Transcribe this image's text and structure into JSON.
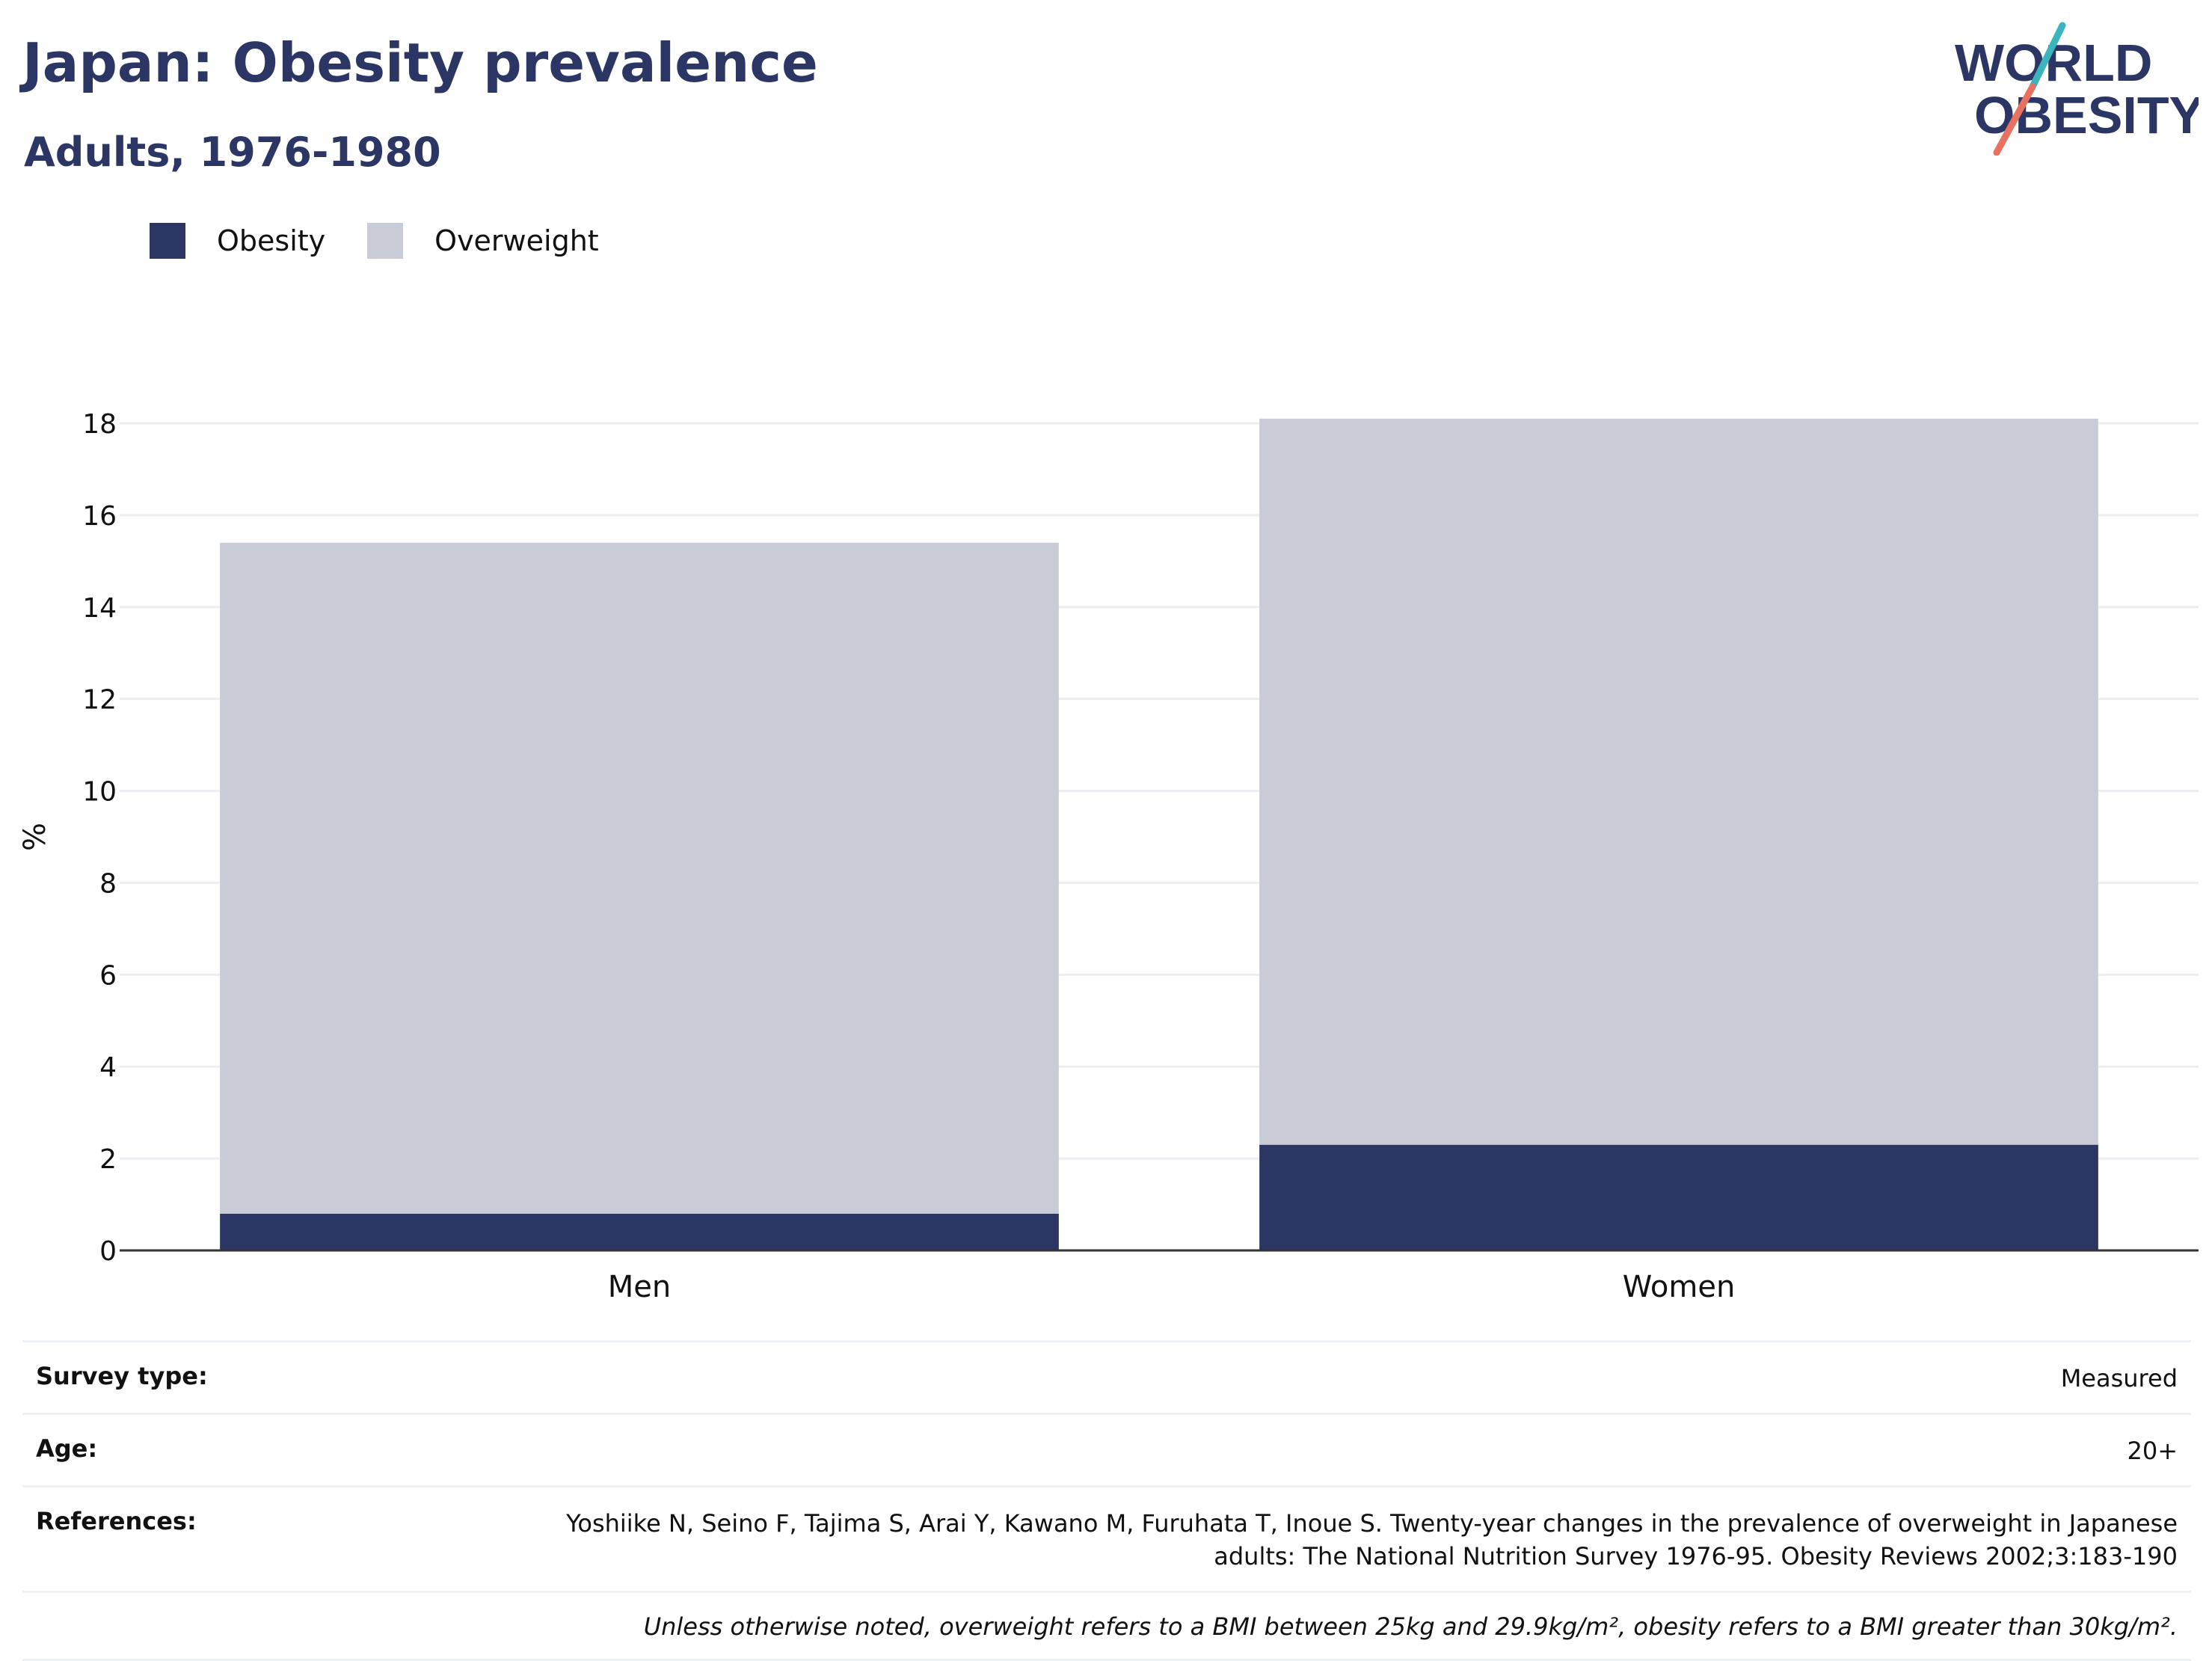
{
  "header": {
    "title": "Japan: Obesity prevalence",
    "subtitle": "Adults, 1976-1980"
  },
  "logo": {
    "line1": "WORLD",
    "line2": "OBESITY",
    "text_color": "#2b3665",
    "slash_top_color": "#3ab4bd",
    "slash_bottom_color": "#e8725f"
  },
  "legend": {
    "items": [
      {
        "label": "Obesity",
        "color": "#2b3665"
      },
      {
        "label": "Overweight",
        "color": "#c9ccd7"
      }
    ]
  },
  "chart_data": {
    "type": "bar",
    "stacked": true,
    "categories": [
      "Men",
      "Women"
    ],
    "series": [
      {
        "name": "Obesity",
        "color": "#2b3665",
        "values": [
          0.8,
          2.3
        ]
      },
      {
        "name": "Overweight",
        "color": "#c9ccd7",
        "values": [
          14.6,
          15.8
        ]
      }
    ],
    "ylabel": "%",
    "ylim": [
      0,
      18
    ],
    "yticks": [
      0,
      2,
      4,
      6,
      8,
      10,
      12,
      14,
      16,
      18
    ],
    "grid": true,
    "legend_position": "top-left"
  },
  "details": {
    "survey_type_label": "Survey type:",
    "survey_type_value": "Measured",
    "age_label": "Age:",
    "age_value": "20+",
    "references_label": "References:",
    "references_line1": "Yoshiike N, Seino F, Tajima S, Arai Y, Kawano M, Furuhata T, Inoue S. Twenty-year changes in the prevalence of overweight in Japanese",
    "references_line2": "adults: The National Nutrition Survey 1976-95. Obesity Reviews 2002;3:183-190",
    "note": "Unless otherwise noted, overweight refers to a BMI between 25kg and 29.9kg/m², obesity refers to a BMI greater than 30kg/m²."
  }
}
